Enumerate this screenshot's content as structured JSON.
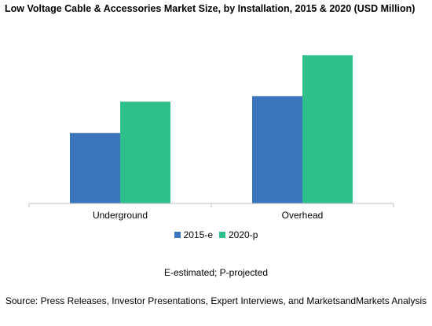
{
  "chart_data": {
    "type": "bar",
    "title": "Low Voltage Cable & Accessories Market Size, by Installation, 2015 & 2020 (USD Million)",
    "categories": [
      "Underground",
      "Overhead"
    ],
    "series": [
      {
        "name": "2015-e",
        "color": "#3a75bd",
        "values": [
          88,
          134
        ]
      },
      {
        "name": "2020-p",
        "color": "#2ebf8a",
        "values": [
          127,
          185
        ]
      }
    ],
    "ylim": [
      0,
      200
    ],
    "grid": false,
    "legend_position": "bottom"
  },
  "note": "E-estimated; P-projected",
  "source": "Source: Press Releases, Investor Presentations, Expert Interviews, and MarketsandMarkets Analysis"
}
